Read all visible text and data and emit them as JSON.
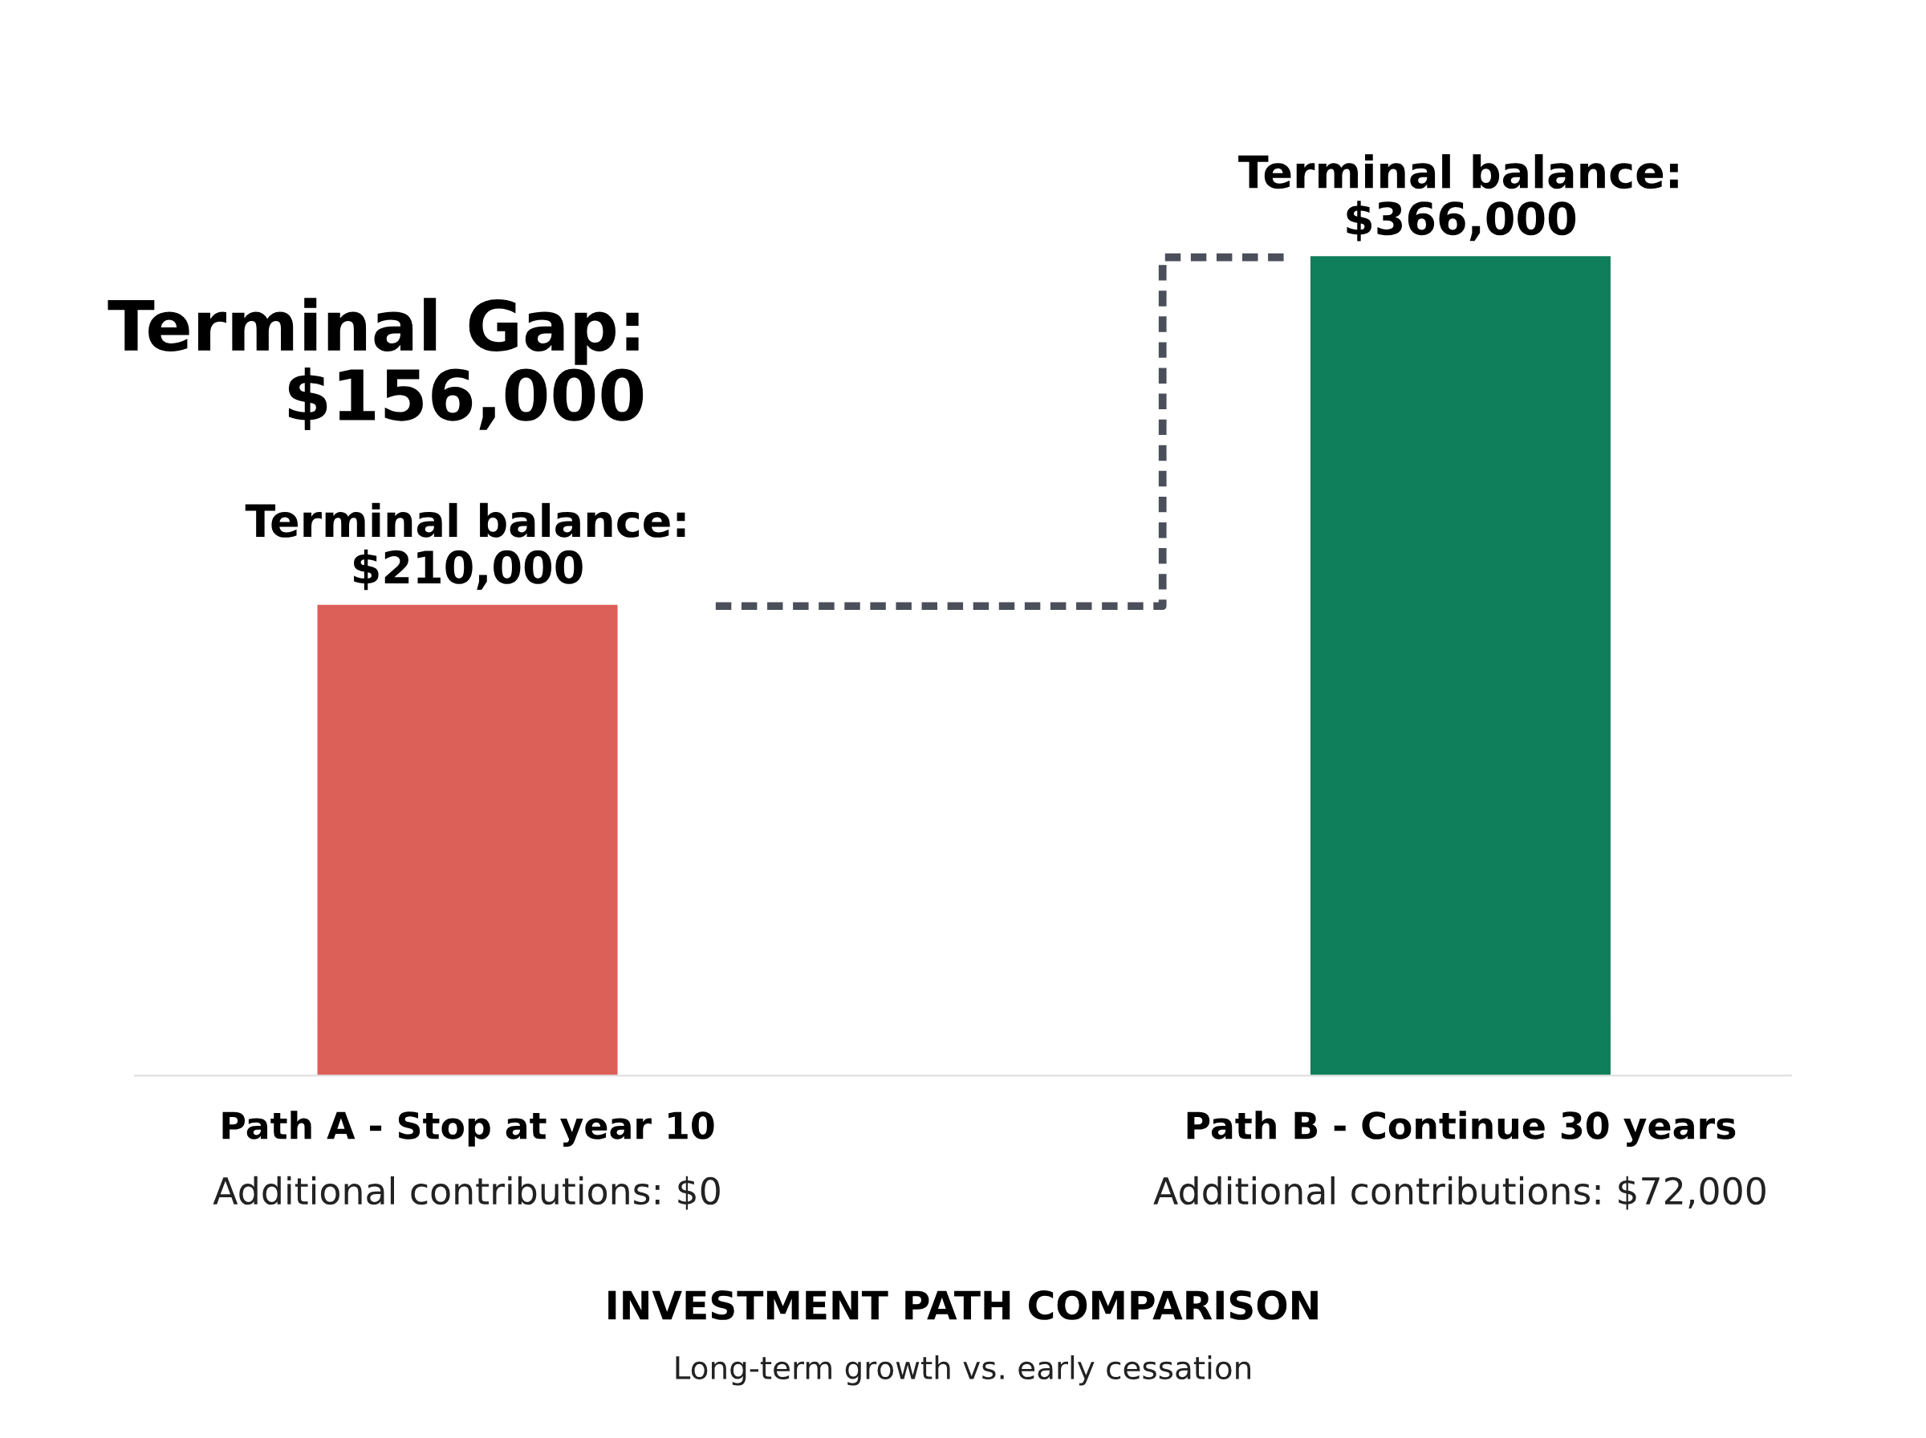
{
  "chart_data": {
    "type": "bar",
    "title": "INVESTMENT PATH COMPARISON",
    "subtitle": "Long-term growth vs. early cessation",
    "categories": [
      "Path A - Stop at year 10\nAdditional contributions: $0",
      "Path B - Continue 30 years\nAdditional contributions: $72,000"
    ],
    "values": [
      210000,
      366000
    ],
    "colors": [
      "#dc5f58",
      "#0e7f5a"
    ],
    "value_labels": [
      "Terminal balance:\n$210,000",
      "Terminal balance:\n$366,000"
    ],
    "annotations": [
      "Terminal Gap:\n$156,000"
    ]
  }
}
